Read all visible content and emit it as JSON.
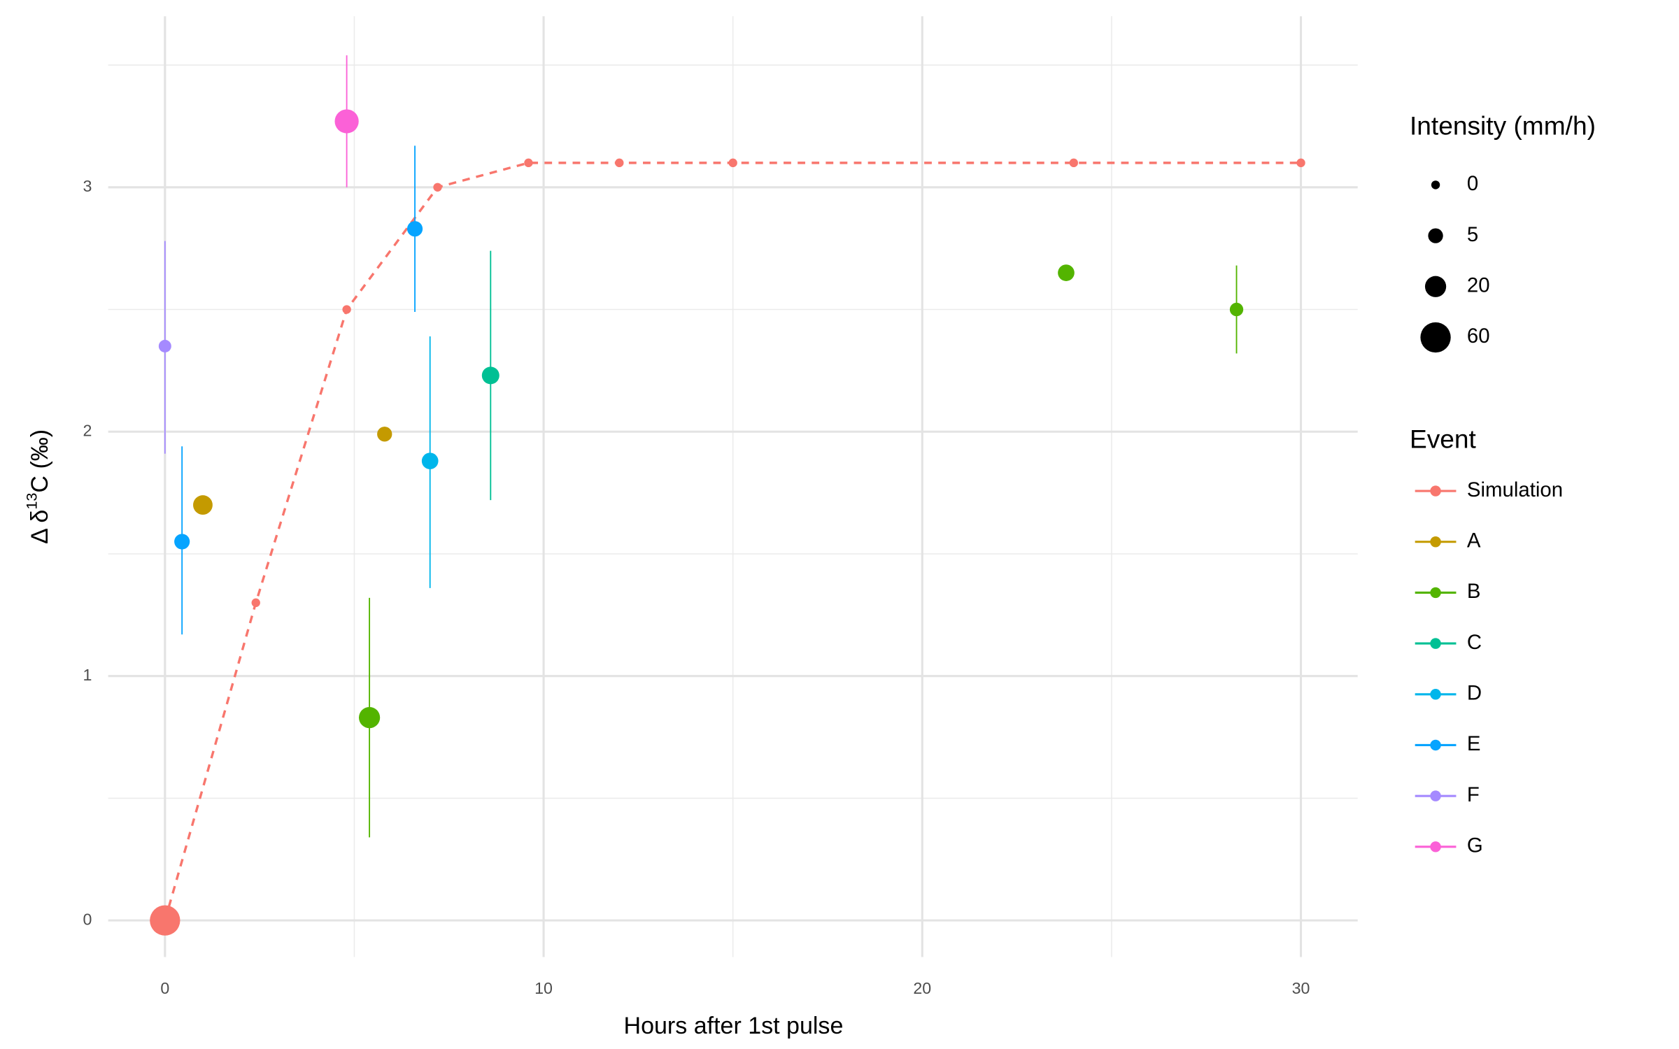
{
  "chart_data": {
    "type": "scatter",
    "x_label": "Hours after 1st pulse",
    "y_label": {
      "prefix": "Δ δ",
      "sup": "13",
      "suffix": "C (‰)"
    },
    "xlim": [
      -1.5,
      31.5
    ],
    "ylim": [
      -0.15,
      3.7
    ],
    "xticks": [
      0,
      10,
      20,
      30
    ],
    "yticks": [
      0,
      1,
      2,
      3
    ],
    "x_minor_ticks": [
      5,
      15,
      25
    ],
    "y_minor_ticks": [
      0.5,
      1.5,
      2.5,
      3.5
    ],
    "grid": true,
    "size_legend": {
      "title": "Intensity (mm/h)",
      "values": [
        0,
        5,
        20,
        60
      ]
    },
    "color_legend_title": "Event",
    "series": [
      {
        "name": "Simulation",
        "color": "#F8766D",
        "line": "dashed",
        "x": [
          0,
          2.4,
          4.8,
          7.2,
          9.6,
          12,
          15,
          24,
          30
        ],
        "values": [
          0,
          1.3,
          2.5,
          3.0,
          3.1,
          3.1,
          3.1,
          3.1,
          3.1
        ],
        "sizes": [
          60,
          0,
          0,
          0,
          0,
          0,
          0,
          0,
          0
        ]
      },
      {
        "name": "A",
        "color": "#C49A00",
        "x": [
          1.0,
          5.8
        ],
        "values": [
          1.7,
          1.99
        ],
        "sizes": [
          15,
          5
        ],
        "ymin": [
          null,
          1.96
        ],
        "ymax": [
          null,
          2.02
        ]
      },
      {
        "name": "B",
        "color": "#53B400",
        "x": [
          5.4,
          23.8,
          28.3
        ],
        "values": [
          0.83,
          2.65,
          2.5
        ],
        "sizes": [
          20,
          8,
          3
        ],
        "ymin": [
          0.34,
          null,
          2.32
        ],
        "ymax": [
          1.32,
          null,
          2.68
        ]
      },
      {
        "name": "C",
        "color": "#00C094",
        "x": [
          8.6
        ],
        "values": [
          2.23
        ],
        "sizes": [
          10
        ],
        "ymin": [
          1.72
        ],
        "ymax": [
          2.74
        ]
      },
      {
        "name": "D",
        "color": "#00B6EB",
        "x": [
          7.0
        ],
        "values": [
          1.88
        ],
        "sizes": [
          8
        ],
        "ymin": [
          1.36
        ],
        "ymax": [
          2.39
        ]
      },
      {
        "name": "E",
        "color": "#06A4FF",
        "x": [
          0.45,
          6.6
        ],
        "values": [
          1.55,
          2.83
        ],
        "sizes": [
          6,
          6
        ],
        "ymin": [
          1.17,
          2.49
        ],
        "ymax": [
          1.94,
          3.17
        ]
      },
      {
        "name": "F",
        "color": "#A58AFF",
        "x": [
          0,
          0
        ],
        "values": [
          2.35,
          null
        ],
        "sizes": [
          2,
          null
        ],
        "ymin": [
          1.91,
          null
        ],
        "ymax": [
          2.78,
          null
        ]
      },
      {
        "name": "G",
        "color": "#FB61D7",
        "x": [
          4.8
        ],
        "values": [
          3.27
        ],
        "sizes": [
          30
        ],
        "ymin": [
          3.0
        ],
        "ymax": [
          3.54
        ]
      }
    ]
  }
}
